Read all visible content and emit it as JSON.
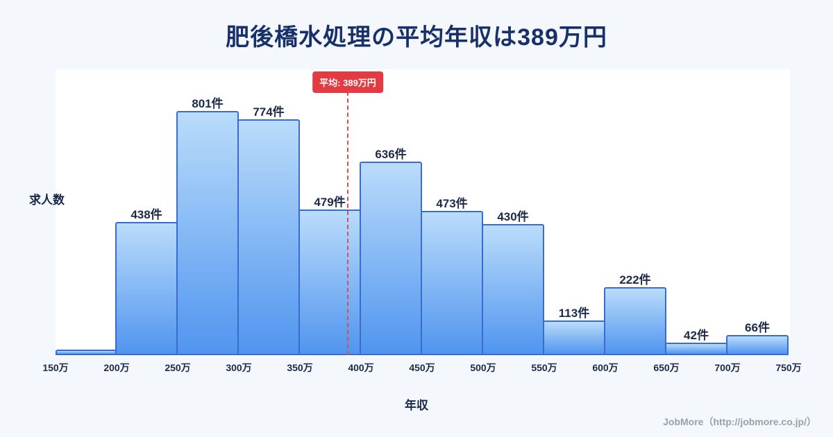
{
  "title": "肥後橋水処理の平均年収は389万円",
  "y_axis_label": "求人数",
  "x_axis_label": "年収",
  "average_badge_label": "平均: 389万円",
  "footer_credit": "JobMore（http://jobmore.co.jp/）",
  "colors": {
    "background": "#f4f8fc",
    "plot_background": "#ffffff",
    "title_text": "#17306b",
    "bar_border": "#3a6bd0",
    "bar_gradient_top": "#badcfb",
    "bar_gradient_bottom": "#5095ef",
    "average_line": "#e8474d",
    "badge_background": "#e23b41",
    "badge_text": "#ffffff",
    "footer_text": "#98a1ab"
  },
  "chart_data": {
    "type": "bar",
    "title": "肥後橋水処理の平均年収は389万円",
    "xlabel": "年収",
    "ylabel": "求人数",
    "x_range_man_yen": [
      150,
      750
    ],
    "bin_width_man_yen": 50,
    "x_ticks": [
      "150万",
      "200万",
      "250万",
      "300万",
      "350万",
      "400万",
      "450万",
      "500万",
      "550万",
      "600万",
      "650万",
      "700万",
      "750万"
    ],
    "bins": [
      {
        "range": "150万-200万",
        "value": 18,
        "label": ""
      },
      {
        "range": "200万-250万",
        "value": 438,
        "label": "438件"
      },
      {
        "range": "250万-300万",
        "value": 801,
        "label": "801件"
      },
      {
        "range": "300万-350万",
        "value": 774,
        "label": "774件"
      },
      {
        "range": "350万-400万",
        "value": 479,
        "label": "479件"
      },
      {
        "range": "400万-450万",
        "value": 636,
        "label": "636件"
      },
      {
        "range": "450万-500万",
        "value": 473,
        "label": "473件"
      },
      {
        "range": "500万-550万",
        "value": 430,
        "label": "430件"
      },
      {
        "range": "550万-600万",
        "value": 113,
        "label": "113件"
      },
      {
        "range": "600万-650万",
        "value": 222,
        "label": "222件"
      },
      {
        "range": "650万-700万",
        "value": 42,
        "label": "42件"
      },
      {
        "range": "700万-750万",
        "value": 66,
        "label": "66件"
      }
    ],
    "average_man_yen": 389,
    "average_label": "平均: 389万円",
    "ylim": [
      0,
      880
    ],
    "grid": false,
    "legend_position": "none"
  }
}
